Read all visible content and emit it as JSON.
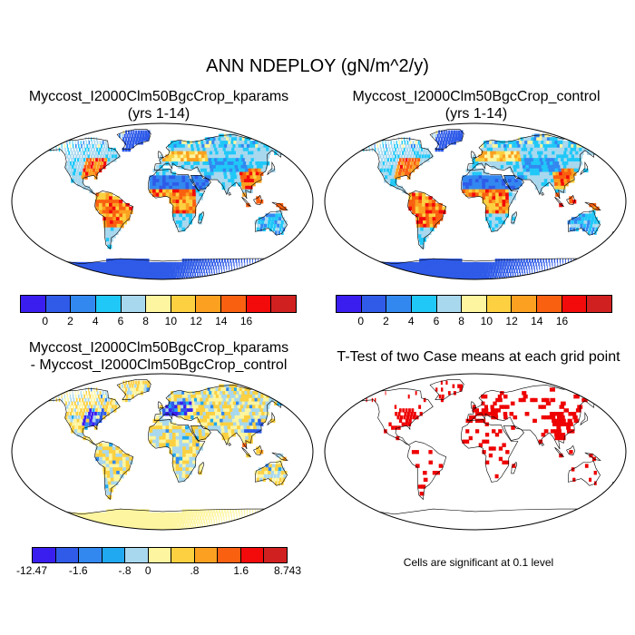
{
  "main_title": "ANN NDEPLOY (gN/m^2/y)",
  "panels": [
    {
      "title_line1": "Myccost_I2000Clm50BgcCrop_kparams",
      "title_line2": "(yrs 1-14)"
    },
    {
      "title_line1": "Myccost_I2000Clm50BgcCrop_control",
      "title_line2": "(yrs 1-14)"
    },
    {
      "title_line1": "Myccost_I2000Clm50BgcCrop_kparams",
      "title_line2": "- Myccost_I2000Clm50BgcCrop_control"
    },
    {
      "title_line1": "T-Test of two Case means at each grid point",
      "title_line2": ""
    }
  ],
  "colorbar_top": {
    "colors": [
      "#3a1ef0",
      "#2f5be8",
      "#3388f0",
      "#20c8f8",
      "#a8d8ee",
      "#fdf5a0",
      "#fcd040",
      "#fba020",
      "#f96010",
      "#f30a0a",
      "#d02020"
    ],
    "tick_labels": [
      "0",
      "2",
      "4",
      "6",
      "8",
      "10",
      "12",
      "14",
      "16"
    ]
  },
  "colorbar_diff": {
    "colors": [
      "#3a1ef0",
      "#2f5be8",
      "#3388f0",
      "#20a8f0",
      "#a8d8ee",
      "#fdf5a0",
      "#fcd040",
      "#fba020",
      "#f96010",
      "#f30a0a",
      "#d02020"
    ],
    "tick_labels": [
      "-12.47",
      "-1.6",
      "-.8",
      "0",
      ".8",
      "1.6",
      "8.743"
    ]
  },
  "significance_note": "Cells are significant at 0.1 level",
  "colors": {
    "ocean": "#ffffff",
    "outline": "#000000",
    "significant": "#ee0000"
  }
}
